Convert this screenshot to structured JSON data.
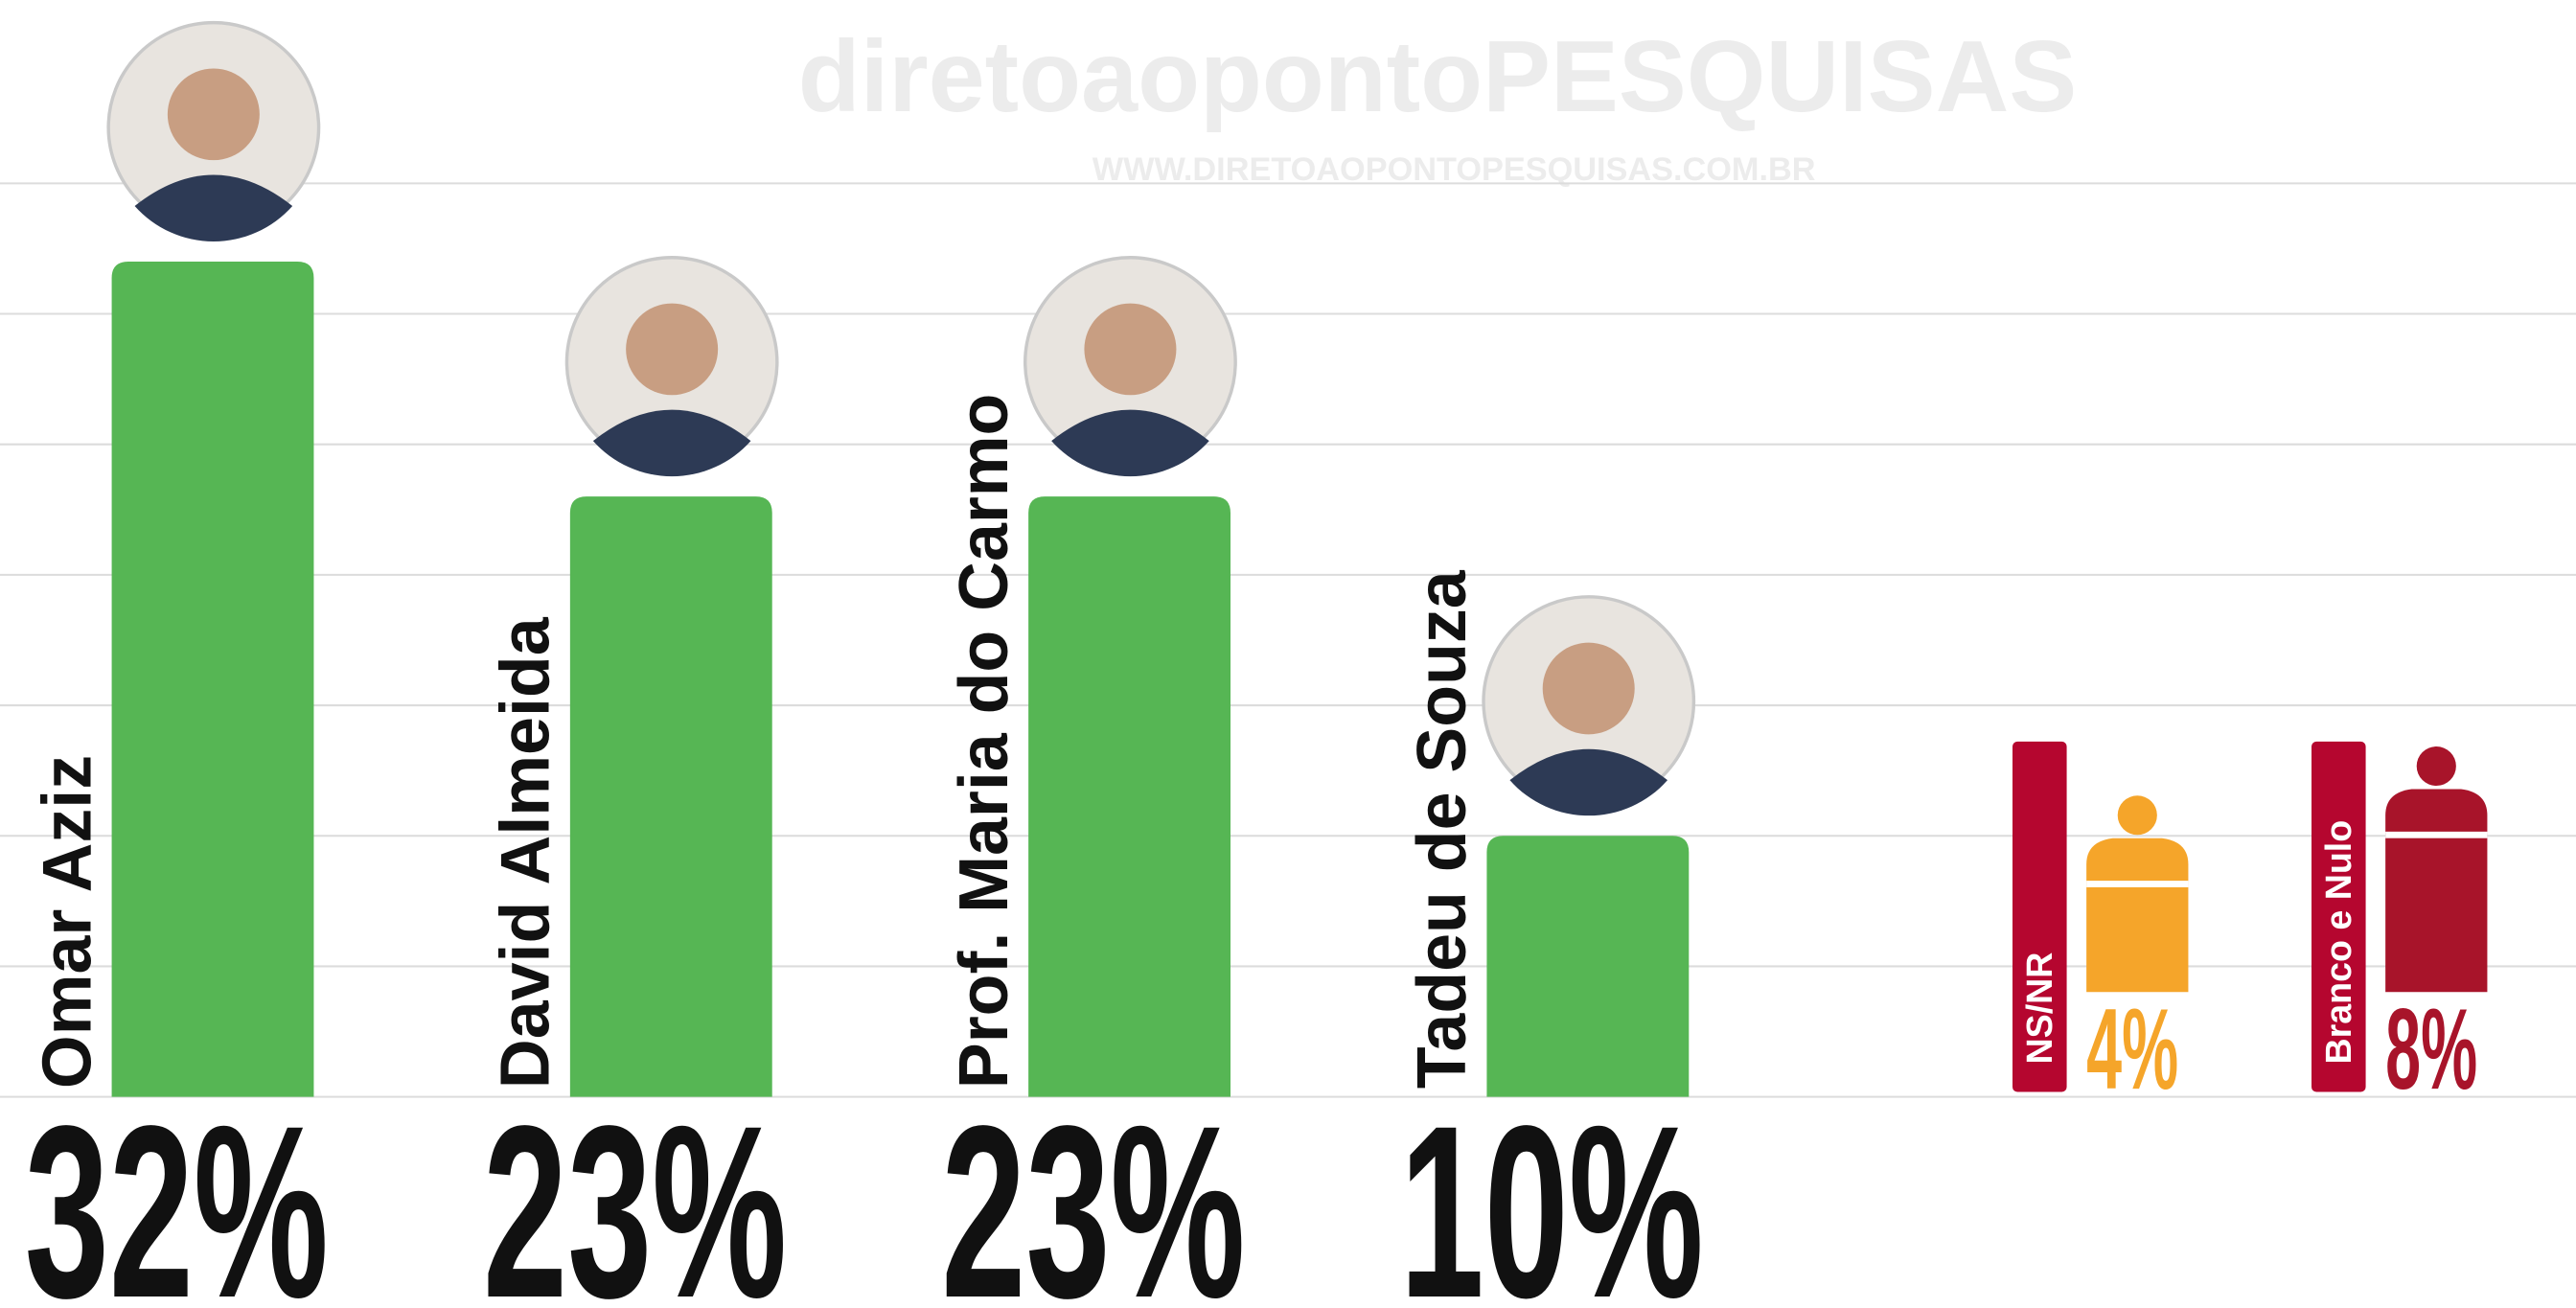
{
  "chart_data": {
    "type": "bar",
    "watermark": "diretoaopontoPESQUISAS",
    "watermark_url": "WWW.DIRETOAOPONTOPESQUISAS.COM.BR",
    "categories": [
      "Omar Aziz",
      "David Almeida",
      "Prof. Maria do Carmo",
      "Tadeu de Souza"
    ],
    "values": [
      32,
      23,
      23,
      10
    ],
    "value_labels": [
      "32%",
      "23%",
      "23%",
      "10%"
    ],
    "color": "#56b654",
    "ylim": [
      0,
      35
    ],
    "yticks": [
      0,
      5,
      10,
      15,
      20,
      25,
      30,
      35
    ],
    "grid": true,
    "others": [
      {
        "name": "NS/NR",
        "value": 4,
        "value_label": "4%",
        "color": "#f5a52a",
        "label_color": "#b5062f"
      },
      {
        "name": "Branco e Nulo",
        "value": 8,
        "value_label": "8%",
        "color": "#a8142a",
        "label_color": "#b5062f"
      }
    ]
  }
}
